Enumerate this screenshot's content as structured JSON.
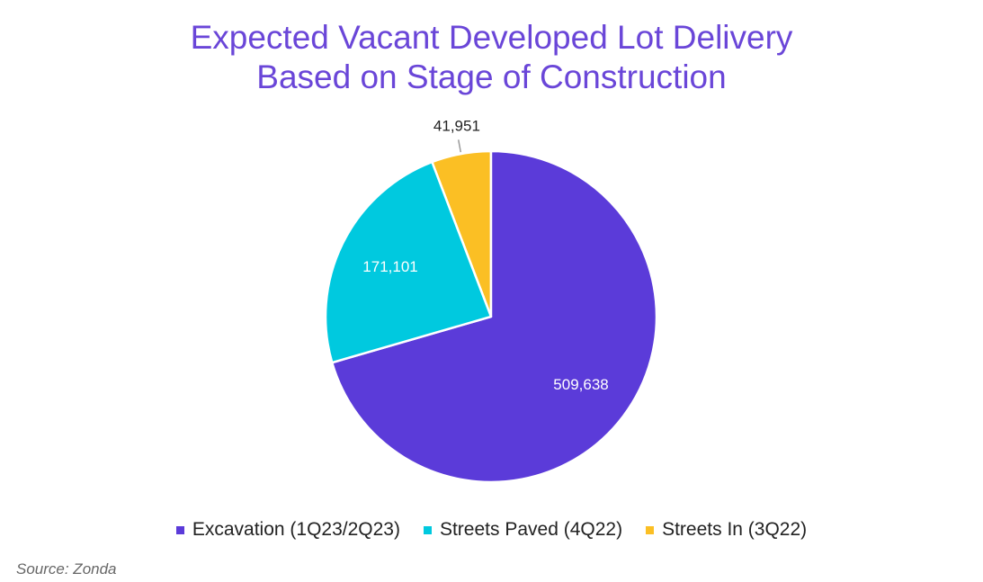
{
  "title_lines": [
    "Expected Vacant Developed Lot Delivery",
    "Based on Stage of Construction"
  ],
  "source": "Source: Zonda",
  "colors": {
    "title": "#6a46d8",
    "excavation": "#5b3bd9",
    "streets_paved": "#00c9df",
    "streets_in": "#fbbf24"
  },
  "chart_data": {
    "type": "pie",
    "title": "Expected Vacant Developed Lot Delivery Based on Stage of Construction",
    "legend_position": "bottom",
    "slices": [
      {
        "label": "Streets In (3Q22)",
        "value": 41951,
        "display": "41,951",
        "color": "#fbbf24",
        "label_position": "outside"
      },
      {
        "label": "Excavation (1Q23/2Q23)",
        "value": 509638,
        "display": "509,638",
        "color": "#5b3bd9",
        "label_position": "inside"
      },
      {
        "label": "Streets Paved (4Q22)",
        "value": 171101,
        "display": "171,101",
        "color": "#00c9df",
        "label_position": "inside"
      }
    ],
    "legend": [
      {
        "label": "Excavation (1Q23/2Q23)",
        "color": "#5b3bd9"
      },
      {
        "label": "Streets Paved (4Q22)",
        "color": "#00c9df"
      },
      {
        "label": "Streets In (3Q22)",
        "color": "#fbbf24"
      }
    ]
  }
}
